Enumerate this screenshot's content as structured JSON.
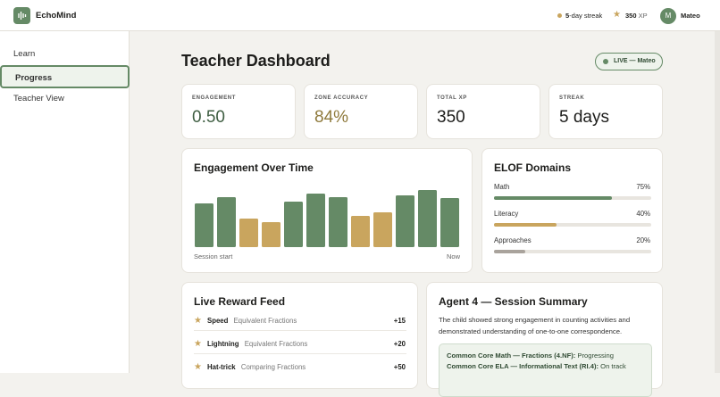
{
  "header": {
    "brand": "EchoMind",
    "streak_count": "5",
    "streak_text": "-day streak",
    "xp_value": "350",
    "xp_unit": "XP",
    "avatar": "M",
    "user": "Mateo"
  },
  "nav": {
    "items": [
      "Learn",
      "Progress",
      "Teacher View"
    ],
    "active": 1
  },
  "page": {
    "title": "Teacher Dashboard",
    "live": "LIVE — Mateo"
  },
  "stats": [
    {
      "label": "ENGAGEMENT",
      "value": "0.50",
      "color": "#3f5e42"
    },
    {
      "label": "ZONE ACCURACY",
      "value": "84%",
      "color": "#8f7a3c"
    },
    {
      "label": "TOTAL XP",
      "value": "350",
      "color": "#1d1d1b"
    },
    {
      "label": "STREAK",
      "value": "5 days",
      "color": "#1d1d1b"
    }
  ],
  "engagement": {
    "title": "Engagement Over Time",
    "values": [
      49,
      56,
      32,
      28,
      51,
      60,
      56,
      35,
      39,
      58,
      64,
      55
    ],
    "colors": [
      "#658a66",
      "#658a66",
      "#c9a55e",
      "#c9a55e",
      "#658a66",
      "#658a66",
      "#658a66",
      "#c9a55e",
      "#c9a55e",
      "#658a66",
      "#658a66",
      "#658a66"
    ],
    "start_label": "Session start",
    "end_label": "Now"
  },
  "elof": {
    "title": "ELOF Domains",
    "domains": [
      {
        "name": "Math",
        "value": 75,
        "value_label": "75%",
        "color": "#658a66"
      },
      {
        "name": "Literacy",
        "value": 40,
        "value_label": "40%",
        "color": "#c9a55e"
      },
      {
        "name": "Approaches",
        "value": 20,
        "value_label": "20%",
        "color": "#a9a39c"
      }
    ]
  },
  "rewards": {
    "title": "Live Reward Feed",
    "items": [
      {
        "name": "Speed",
        "topic": "Equivalent Fractions",
        "points": "+15"
      },
      {
        "name": "Lightning",
        "topic": "Equivalent Fractions",
        "points": "+20"
      },
      {
        "name": "Hat-trick",
        "topic": "Comparing Fractions",
        "points": "+50"
      }
    ]
  },
  "summary": {
    "title": "Agent 4 — Session Summary",
    "text": "The child showed strong engagement in counting activities and demonstrated understanding of one-to-one correspondence.",
    "standards": [
      {
        "label": "Common Core Math — Fractions (4.NF):",
        "status": "Progressing"
      },
      {
        "label": "Common Core ELA — Informational Text (RI.4):",
        "status": "On track"
      }
    ]
  }
}
